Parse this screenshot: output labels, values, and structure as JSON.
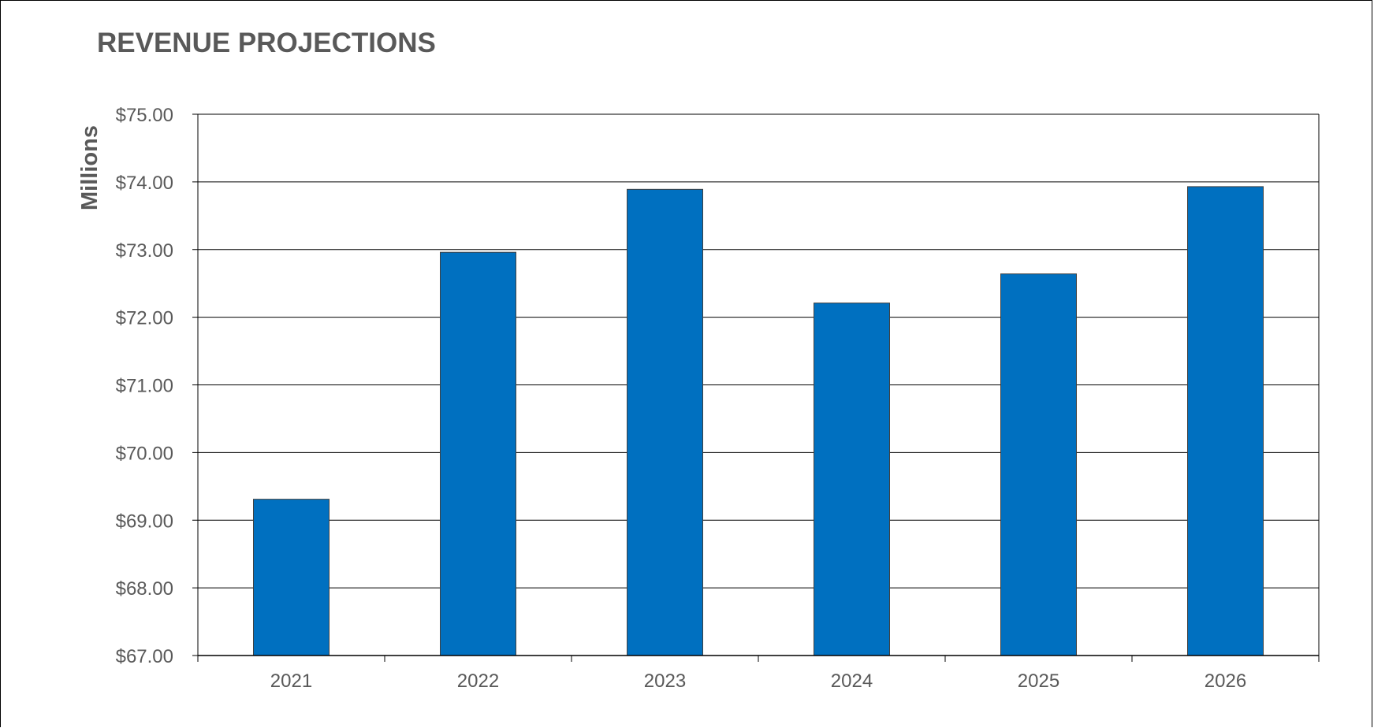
{
  "chart_data": {
    "type": "bar",
    "title": "REVENUE PROJECTIONS",
    "xlabel": "",
    "ylabel": "Millions",
    "categories": [
      "2021",
      "2022",
      "2023",
      "2024",
      "2025",
      "2026"
    ],
    "series": [
      {
        "values": [
          69.31,
          72.96,
          73.89,
          72.21,
          72.64,
          73.93
        ],
        "color": "#0070C0"
      }
    ],
    "ylim": [
      67,
      75
    ],
    "yticks": [
      "$67.00",
      "$68.00",
      "$69.00",
      "$70.00",
      "$71.00",
      "$72.00",
      "$73.00",
      "$74.00",
      "$75.00"
    ],
    "ytick_values": [
      67,
      68,
      69,
      70,
      71,
      72,
      73,
      74,
      75
    ],
    "grid": true,
    "legend": "none"
  }
}
